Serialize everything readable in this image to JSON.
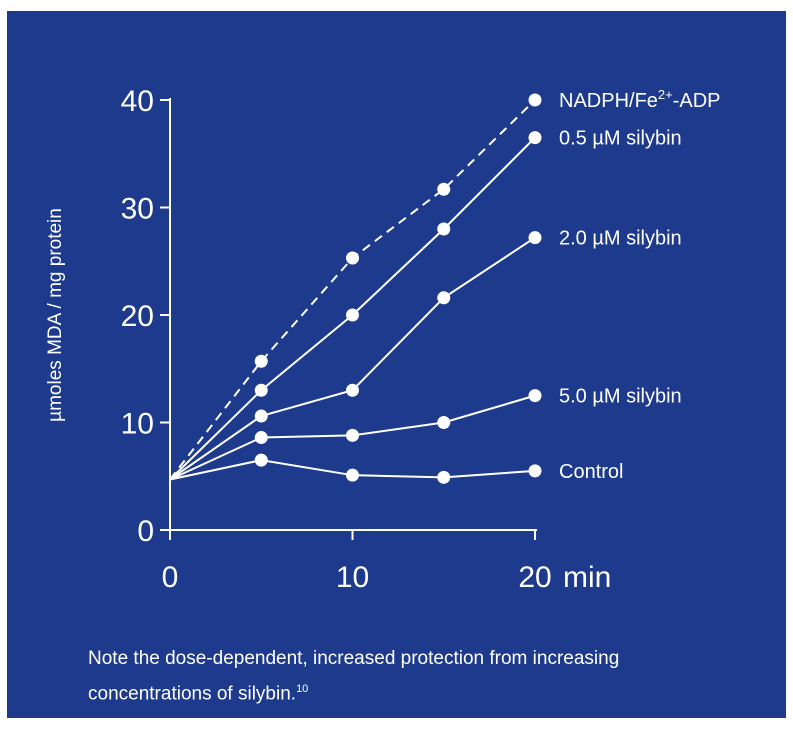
{
  "colors": {
    "background": "#1e3a8c",
    "foreground": "#ffffff"
  },
  "chart_data": {
    "type": "line",
    "x": [
      0,
      5,
      10,
      15,
      20
    ],
    "xlim": [
      0,
      20
    ],
    "ylim": [
      0,
      40
    ],
    "x_ticks": [
      "0",
      "10",
      "20"
    ],
    "x_tick_values": [
      0,
      10,
      20
    ],
    "x_unit": "min",
    "y_ticks": [
      "0",
      "10",
      "20",
      "30",
      "40"
    ],
    "y_tick_values": [
      0,
      10,
      20,
      30,
      40
    ],
    "ylabel": "µmoles MDA / mg protein",
    "series": [
      {
        "name": "NADPH/Fe2+-ADP",
        "label_main": "NADPH/Fe",
        "label_sup": "2+",
        "label_tail": "-ADP",
        "dashed": true,
        "values": [
          4.7,
          15.7,
          25.3,
          31.7,
          40.0
        ]
      },
      {
        "name": "0.5 µM silybin",
        "dashed": false,
        "values": [
          4.7,
          13.0,
          20.0,
          28.0,
          36.5
        ]
      },
      {
        "name": "2.0 µM silybin",
        "dashed": false,
        "values": [
          4.7,
          10.6,
          13.0,
          21.6,
          27.2
        ]
      },
      {
        "name": "5.0 µM silybin",
        "dashed": false,
        "values": [
          4.7,
          8.6,
          8.8,
          10.0,
          12.5
        ]
      },
      {
        "name": "Control",
        "dashed": false,
        "values": [
          4.7,
          6.5,
          5.1,
          4.9,
          5.5
        ]
      }
    ]
  },
  "note": {
    "text": "Note the dose-dependent, increased protection from increasing concentrations of silybin.",
    "ref": "10"
  }
}
